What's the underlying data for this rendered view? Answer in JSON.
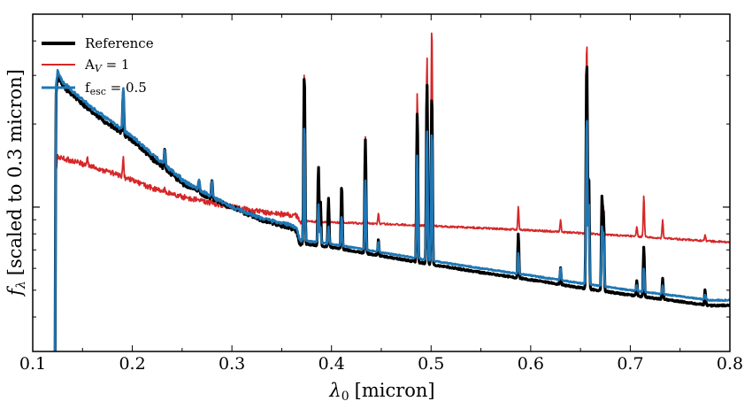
{
  "chart_data": {
    "type": "line",
    "title": "",
    "xlabel": "λ0 [micron]",
    "xlabel_parts": {
      "symbol": "λ",
      "sub": "0",
      "unit": "[micron]"
    },
    "ylabel": "fλ [scaled to 0.3 micron]",
    "ylabel_parts": {
      "symbol": "f",
      "sub": "λ",
      "unit": "[scaled to 0.3 micron]"
    },
    "y_scale": "log",
    "xlim": [
      0.1,
      0.8
    ],
    "ylim": [
      0.3,
      5.0
    ],
    "x_ticks": [
      0.1,
      0.2,
      0.3,
      0.4,
      0.5,
      0.6,
      0.7,
      0.8
    ],
    "x_tick_labels": [
      "0.1",
      "0.2",
      "0.3",
      "0.4",
      "0.5",
      "0.6",
      "0.7",
      "0.8"
    ],
    "y_major_ticks": [
      1.0
    ],
    "y_tick_labels": [],
    "grid": false,
    "legend": {
      "position": "top-left",
      "entries": [
        {
          "label": "Reference",
          "color": "#000000"
        },
        {
          "label": "A",
          "label_sub": "V",
          "label_suffix": " = 1",
          "color": "#d62728"
        },
        {
          "label": "f",
          "label_sub": "esc",
          "label_suffix": " = 0.5",
          "color": "#1f77b4"
        }
      ]
    },
    "series": [
      {
        "name": "Reference",
        "color": "#000000",
        "continuum": [
          [
            0.1225,
            0.3
          ],
          [
            0.1235,
            2.6
          ],
          [
            0.125,
            3.0
          ],
          [
            0.13,
            2.75
          ],
          [
            0.14,
            2.55
          ],
          [
            0.16,
            2.2
          ],
          [
            0.18,
            1.95
          ],
          [
            0.2,
            1.75
          ],
          [
            0.22,
            1.5
          ],
          [
            0.25,
            1.22
          ],
          [
            0.28,
            1.07
          ],
          [
            0.3,
            1.0
          ],
          [
            0.33,
            0.9
          ],
          [
            0.36,
            0.84
          ],
          [
            0.365,
            0.82
          ],
          [
            0.368,
            0.74
          ],
          [
            0.4,
            0.715
          ],
          [
            0.45,
            0.665
          ],
          [
            0.5,
            0.62
          ],
          [
            0.55,
            0.58
          ],
          [
            0.6,
            0.545
          ],
          [
            0.65,
            0.51
          ],
          [
            0.7,
            0.48
          ],
          [
            0.75,
            0.455
          ],
          [
            0.78,
            0.44
          ]
        ],
        "lines": [
          [
            0.1549,
            2.15
          ],
          [
            0.1909,
            2.65
          ],
          [
            0.2326,
            1.6
          ],
          [
            0.247,
            1.3
          ],
          [
            0.267,
            1.24
          ],
          [
            0.28,
            1.25
          ],
          [
            0.3727,
            3.05
          ],
          [
            0.3869,
            1.4
          ],
          [
            0.3889,
            1.05
          ],
          [
            0.397,
            1.08
          ],
          [
            0.4102,
            1.2
          ],
          [
            0.434,
            1.75
          ],
          [
            0.4471,
            0.76
          ],
          [
            0.4861,
            2.2
          ],
          [
            0.4959,
            2.8
          ],
          [
            0.5007,
            2.55
          ],
          [
            0.5876,
            0.8
          ],
          [
            0.63,
            0.6
          ],
          [
            0.6563,
            3.4
          ],
          [
            0.6583,
            1.3
          ],
          [
            0.6716,
            1.1
          ],
          [
            0.6731,
            0.95
          ],
          [
            0.7065,
            0.54
          ],
          [
            0.7136,
            0.72
          ],
          [
            0.7325,
            0.55
          ],
          [
            0.7751,
            0.5
          ]
        ],
        "gain": 1.0
      },
      {
        "name": "A_V = 1",
        "color": "#d62728",
        "continuum": [
          [
            0.1222,
            0.3
          ],
          [
            0.1232,
            1.3
          ],
          [
            0.125,
            1.52
          ],
          [
            0.14,
            1.47
          ],
          [
            0.16,
            1.4
          ],
          [
            0.18,
            1.33
          ],
          [
            0.2,
            1.25
          ],
          [
            0.22,
            1.17
          ],
          [
            0.25,
            1.09
          ],
          [
            0.28,
            1.035
          ],
          [
            0.3,
            1.0
          ],
          [
            0.33,
            0.96
          ],
          [
            0.365,
            0.93
          ],
          [
            0.368,
            0.89
          ],
          [
            0.4,
            0.88
          ],
          [
            0.45,
            0.87
          ],
          [
            0.5,
            0.855
          ],
          [
            0.55,
            0.84
          ],
          [
            0.6,
            0.825
          ],
          [
            0.65,
            0.805
          ],
          [
            0.7,
            0.785
          ],
          [
            0.75,
            0.765
          ],
          [
            0.8,
            0.745
          ]
        ],
        "lines": [
          [
            0.1549,
            1.52
          ],
          [
            0.1909,
            1.5
          ],
          [
            0.2326,
            1.16
          ],
          [
            0.247,
            1.05
          ],
          [
            0.3727,
            3.15
          ],
          [
            0.3869,
            1.35
          ],
          [
            0.3889,
            1.0
          ],
          [
            0.397,
            1.07
          ],
          [
            0.4102,
            1.2
          ],
          [
            0.434,
            1.8
          ],
          [
            0.4471,
            0.95
          ],
          [
            0.4861,
            2.6
          ],
          [
            0.4959,
            3.5
          ],
          [
            0.5007,
            4.5
          ],
          [
            0.5876,
            1.0
          ],
          [
            0.63,
            0.9
          ],
          [
            0.6563,
            4.0
          ],
          [
            0.6583,
            1.3
          ],
          [
            0.6716,
            1.05
          ],
          [
            0.6731,
            1.0
          ],
          [
            0.7065,
            0.85
          ],
          [
            0.7136,
            1.1
          ],
          [
            0.7325,
            0.9
          ],
          [
            0.7751,
            0.8
          ]
        ],
        "gain": 1.3
      },
      {
        "name": "f_esc = 0.5",
        "color": "#1f77b4",
        "continuum": [
          [
            0.1225,
            0.3
          ],
          [
            0.1235,
            2.75
          ],
          [
            0.125,
            3.1
          ],
          [
            0.13,
            2.85
          ],
          [
            0.14,
            2.62
          ],
          [
            0.16,
            2.28
          ],
          [
            0.18,
            2.02
          ],
          [
            0.2,
            1.8
          ],
          [
            0.22,
            1.55
          ],
          [
            0.25,
            1.25
          ],
          [
            0.28,
            1.09
          ],
          [
            0.3,
            1.0
          ],
          [
            0.33,
            0.91
          ],
          [
            0.36,
            0.86
          ],
          [
            0.365,
            0.84
          ],
          [
            0.368,
            0.76
          ],
          [
            0.4,
            0.735
          ],
          [
            0.45,
            0.685
          ],
          [
            0.5,
            0.64
          ],
          [
            0.55,
            0.6
          ],
          [
            0.6,
            0.565
          ],
          [
            0.65,
            0.53
          ],
          [
            0.7,
            0.5
          ],
          [
            0.75,
            0.475
          ],
          [
            0.78,
            0.46
          ]
        ],
        "lines": [
          [
            0.1549,
            2.18
          ],
          [
            0.1909,
            2.7
          ],
          [
            0.2326,
            1.62
          ],
          [
            0.247,
            1.32
          ],
          [
            0.267,
            1.26
          ],
          [
            0.28,
            1.25
          ],
          [
            0.3727,
            2.0
          ],
          [
            0.3869,
            1.03
          ],
          [
            0.3889,
            0.85
          ],
          [
            0.397,
            0.85
          ],
          [
            0.4102,
            0.93
          ],
          [
            0.434,
            1.25
          ],
          [
            0.4471,
            0.75
          ],
          [
            0.4861,
            1.55
          ],
          [
            0.4959,
            1.9
          ],
          [
            0.5007,
            1.9
          ],
          [
            0.5876,
            0.68
          ],
          [
            0.63,
            0.6
          ],
          [
            0.6563,
            2.15
          ],
          [
            0.6583,
            1.05
          ],
          [
            0.6716,
            0.85
          ],
          [
            0.6731,
            0.8
          ],
          [
            0.7065,
            0.52
          ],
          [
            0.7136,
            0.6
          ],
          [
            0.7325,
            0.52
          ],
          [
            0.7751,
            0.48
          ]
        ],
        "gain": 0.75
      }
    ]
  }
}
